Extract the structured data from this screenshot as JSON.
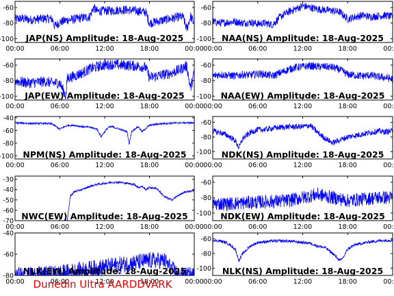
{
  "credit": "Dunedin Ultra AARDDVARK",
  "colors": {
    "trace": "#0000ff",
    "axis": "#000000",
    "credit": "#e00000",
    "background": "#ffffff"
  },
  "chart_data": [
    {
      "type": "line",
      "title": "JAP(NS) Amplitude: 18-Aug-2025",
      "xticks": [
        "00:00",
        "06:00",
        "12:00",
        "18:00",
        "00:00"
      ],
      "xlim": [
        0,
        24
      ],
      "ylim": [
        -105,
        -52
      ],
      "yticks": [
        -100,
        -80,
        -60
      ],
      "series": [
        {
          "x": [
            0,
            1,
            2,
            3,
            4,
            5,
            5.3,
            6,
            7,
            8,
            9,
            10,
            10.5,
            11,
            12,
            13,
            14,
            15,
            16,
            17,
            17.5,
            18,
            19,
            20,
            21,
            22,
            22.5,
            23,
            23.5,
            24
          ],
          "values": [
            -75,
            -74,
            -76,
            -75,
            -74,
            -75,
            -84,
            -79,
            -76,
            -75,
            -73,
            -72,
            -60,
            -65,
            -64,
            -64,
            -63,
            -63,
            -64,
            -65,
            -66,
            -80,
            -78,
            -76,
            -74,
            -72,
            -72,
            -88,
            -71,
            -80
          ],
          "spread": 6
        }
      ]
    },
    {
      "type": "line",
      "title": "NAA(NS) Amplitude: 18-Aug-2025",
      "xticks": [
        "00:00",
        "06:00",
        "12:00",
        "18:00",
        "00:00"
      ],
      "xlim": [
        0,
        24
      ],
      "ylim": [
        -105,
        -52
      ],
      "yticks": [
        -100,
        -80,
        -60
      ],
      "series": [
        {
          "x": [
            0,
            1,
            2,
            3,
            4,
            5,
            6,
            7,
            8,
            9,
            10,
            11,
            12,
            13,
            14,
            15,
            16,
            17,
            18,
            19,
            20,
            21,
            22,
            23,
            24
          ],
          "values": [
            -78,
            -80,
            -79,
            -78,
            -80,
            -79,
            -81,
            -80,
            -82,
            -72,
            -66,
            -62,
            -58,
            -60,
            -62,
            -63,
            -64,
            -66,
            -75,
            -72,
            -70,
            -72,
            -71,
            -70,
            -72
          ],
          "spread": 5
        }
      ]
    },
    {
      "type": "line",
      "title": "JAP(EW) Amplitude: 18-Aug-2025",
      "xticks": [
        "00:00",
        "06:00",
        "12:00",
        "18:00",
        "00:00"
      ],
      "xlim": [
        0,
        24
      ],
      "ylim": [
        -105,
        -52
      ],
      "yticks": [
        -100,
        -80,
        -60
      ],
      "series": [
        {
          "x": [
            0,
            1,
            2,
            3,
            4,
            5,
            6,
            6.8,
            7,
            8,
            9,
            10,
            11,
            12,
            13,
            14,
            15,
            16,
            17,
            17.5,
            18,
            19,
            20,
            21,
            22,
            23,
            23.5,
            24
          ],
          "values": [
            -80,
            -82,
            -83,
            -82,
            -81,
            -83,
            -83,
            -100,
            -77,
            -74,
            -70,
            -65,
            -62,
            -60,
            -59,
            -60,
            -60,
            -61,
            -62,
            -63,
            -76,
            -74,
            -72,
            -70,
            -66,
            -61,
            -90,
            -70
          ],
          "spread": 7
        }
      ]
    },
    {
      "type": "line",
      "title": "NAA(EW) Amplitude: 18-Aug-2025",
      "xticks": [
        "00:00",
        "06:00",
        "12:00",
        "18:00",
        "00:00"
      ],
      "xlim": [
        0,
        24
      ],
      "ylim": [
        -105,
        -52
      ],
      "yticks": [
        -100,
        -80,
        -60
      ],
      "series": [
        {
          "x": [
            0,
            1,
            2,
            3,
            4,
            5,
            6,
            7,
            8,
            9,
            10,
            11,
            12,
            13,
            14,
            15,
            16,
            17,
            18,
            19,
            20,
            21,
            22,
            23,
            24
          ],
          "values": [
            -74,
            -72,
            -73,
            -74,
            -72,
            -73,
            -71,
            -72,
            -74,
            -70,
            -66,
            -63,
            -62,
            -61,
            -62,
            -62,
            -63,
            -66,
            -72,
            -73,
            -74,
            -73,
            -75,
            -76,
            -78
          ],
          "spread": 5
        }
      ]
    },
    {
      "type": "line",
      "title": "NPM(NS) Amplitude: 18-Aug-2025",
      "xticks": [
        "00:00",
        "06:00",
        "12:00",
        "18:00",
        "00:00"
      ],
      "xlim": [
        0,
        24
      ],
      "ylim": [
        -105,
        -38
      ],
      "yticks": [
        -100,
        -80,
        -60,
        -40
      ],
      "series": [
        {
          "x": [
            0,
            2,
            4,
            5,
            6,
            7,
            8,
            9,
            10,
            11,
            11.5,
            12,
            12.5,
            13,
            14,
            15,
            15.3,
            15.6,
            16,
            16.5,
            17,
            18,
            19,
            20,
            22,
            24
          ],
          "values": [
            -48,
            -49,
            -49,
            -50,
            -58,
            -52,
            -52,
            -54,
            -55,
            -58,
            -70,
            -62,
            -55,
            -54,
            -58,
            -62,
            -82,
            -62,
            -58,
            -54,
            -62,
            -52,
            -50,
            -49,
            -48,
            -48
          ],
          "spread": 1.5
        }
      ]
    },
    {
      "type": "line",
      "title": "NDK(NS) Amplitude: 18-Aug-2025",
      "xticks": [
        "00:00",
        "06:00",
        "12:00",
        "18:00",
        "00:00"
      ],
      "xlim": [
        0,
        24
      ],
      "ylim": [
        -110,
        -52
      ],
      "yticks": [
        -100,
        -80,
        -60
      ],
      "series": [
        {
          "x": [
            0,
            1,
            2,
            3,
            3.5,
            4,
            5,
            6,
            7,
            8,
            9,
            10,
            11,
            12,
            13,
            14,
            15,
            16,
            17,
            18,
            19,
            20,
            21,
            22,
            23,
            24
          ],
          "values": [
            -72,
            -74,
            -78,
            -85,
            -95,
            -82,
            -74,
            -70,
            -70,
            -68,
            -67,
            -66,
            -66,
            -66,
            -64,
            -74,
            -82,
            -88,
            -84,
            -80,
            -78,
            -76,
            -74,
            -72,
            -73,
            -72
          ],
          "spread": 4
        }
      ]
    },
    {
      "type": "line",
      "title": "NWC(EW) Amplitude: 18-Aug-2025",
      "xticks": [
        "00:00",
        "06:00",
        "12:00",
        "18:00",
        "00:00"
      ],
      "xlim": [
        0,
        24
      ],
      "ylim": [
        -70,
        -27
      ],
      "yticks": [
        -70,
        -60,
        -50,
        -40,
        -30
      ],
      "series": [
        {
          "x": [
            0,
            2,
            4,
            6,
            7,
            7.2,
            7.4,
            8,
            9,
            10,
            11,
            12,
            13,
            14,
            15,
            16,
            16.5,
            17,
            17.5,
            18,
            19,
            20,
            21,
            22,
            23,
            24
          ],
          "values": [
            -72,
            -72,
            -72,
            -72,
            -70,
            -58,
            -46,
            -42,
            -40,
            -37,
            -35,
            -34,
            -33,
            -33,
            -34,
            -35,
            -38,
            -37,
            -40,
            -38,
            -39,
            -47,
            -50,
            -45,
            -42,
            -41
          ],
          "spread": 1
        }
      ]
    },
    {
      "type": "line",
      "title": "NDK(EW) Amplitude: 18-Aug-2025",
      "xticks": [
        "00:00",
        "06:00",
        "12:00",
        "18:00",
        "00:00"
      ],
      "xlim": [
        0,
        24
      ],
      "ylim": [
        -110,
        -52
      ],
      "yticks": [
        -100,
        -80,
        -60
      ],
      "series": [
        {
          "x": [
            0,
            2,
            4,
            6,
            8,
            10,
            12,
            14,
            16,
            18,
            20,
            22,
            24
          ],
          "values": [
            -88,
            -88,
            -87,
            -86,
            -85,
            -84,
            -80,
            -76,
            -80,
            -84,
            -82,
            -80,
            -80
          ],
          "spread": 9
        }
      ]
    },
    {
      "type": "line",
      "title": "NLK(EW) Amplitude: 18-Aug-2025",
      "xticks": [
        "00:00",
        "06:00",
        "12:00",
        "18:00",
        "00:00"
      ],
      "xlim": [
        0,
        24
      ],
      "ylim": [
        -80,
        -40
      ],
      "yticks": [
        -80,
        -60,
        -40
      ],
      "series": [
        {
          "x": [
            0,
            2,
            4,
            6,
            8,
            10,
            12,
            14,
            16,
            18,
            20,
            20.5,
            21,
            22,
            23,
            24
          ],
          "values": [
            -80,
            -80,
            -79,
            -78,
            -76,
            -74,
            -72,
            -70,
            -68,
            -66,
            -66,
            -70,
            -74,
            -80,
            -80,
            -80
          ],
          "spread": 8
        }
      ]
    },
    {
      "type": "line",
      "title": "NLK(NS) Amplitude: 18-Aug-2025",
      "xticks": [
        "00:00",
        "06:00",
        "12:00",
        "18:00",
        "00:00"
      ],
      "xlim": [
        0,
        24
      ],
      "ylim": [
        -110,
        -52
      ],
      "yticks": [
        -100,
        -80,
        -60
      ],
      "series": [
        {
          "x": [
            0,
            1,
            2,
            3,
            3.5,
            4,
            5,
            6,
            7,
            8,
            9,
            10,
            11,
            12,
            13,
            14,
            15,
            16,
            17,
            17.5,
            18,
            19,
            20,
            21,
            22,
            23,
            24
          ],
          "values": [
            -62,
            -63,
            -66,
            -74,
            -90,
            -80,
            -70,
            -65,
            -64,
            -63,
            -63,
            -63,
            -64,
            -65,
            -66,
            -70,
            -72,
            -80,
            -90,
            -84,
            -74,
            -68,
            -66,
            -64,
            -63,
            -62,
            -62
          ],
          "spread": 2
        }
      ]
    }
  ]
}
